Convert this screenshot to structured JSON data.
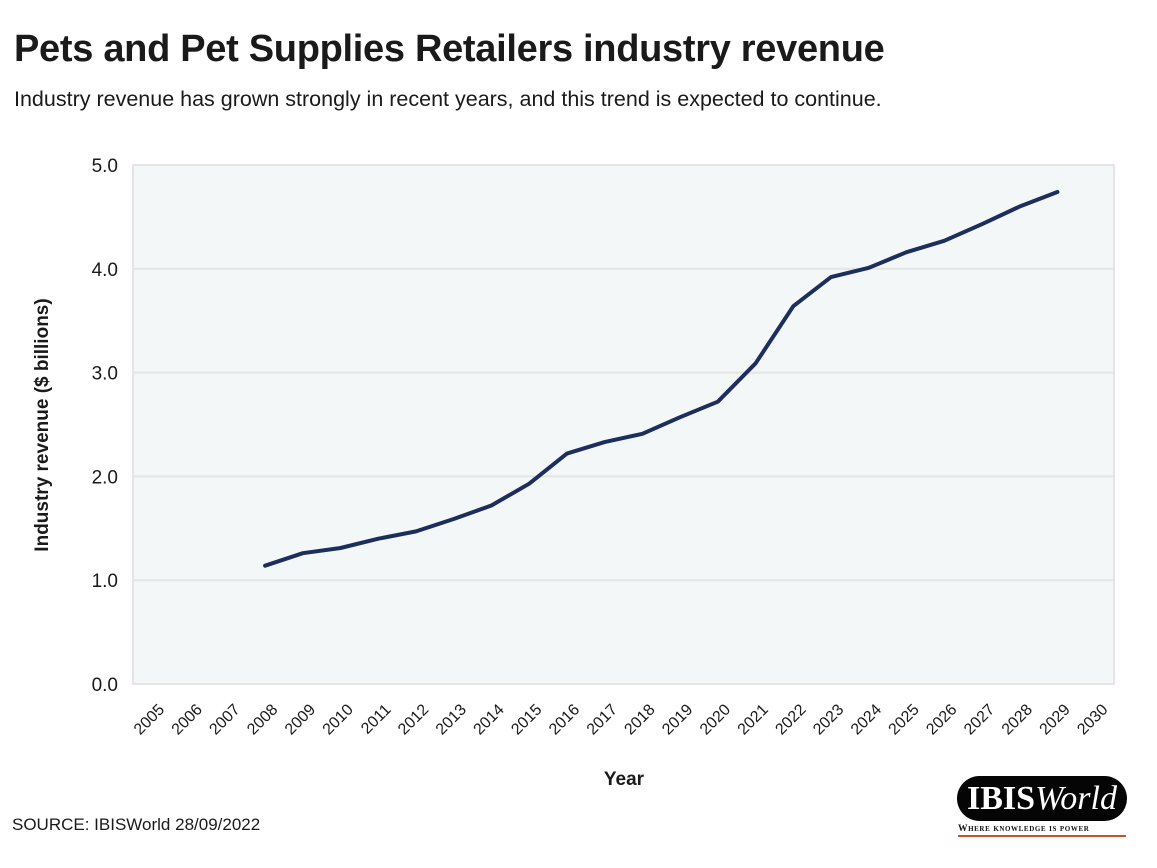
{
  "header": {
    "title": "Pets and Pet Supplies Retailers industry revenue",
    "subtitle": "Industry revenue has grown strongly in recent years, and this trend is expected to continue."
  },
  "footer": {
    "source": "SOURCE: IBISWorld 28/09/2022",
    "logo_bold": "IBIS",
    "logo_italic": "World",
    "tagline": "Where knowledge is power"
  },
  "colors": {
    "line": "#1c2f5c",
    "plot_background": "#f4f7f7",
    "gridline": "#e4e6e6",
    "text": "#1a1a1a",
    "logo_background": "#050505",
    "tagline_underline": "#c8502a"
  },
  "chart_data": {
    "type": "line",
    "title": "Pets and Pet Supplies Retailers industry revenue",
    "subtitle": "Industry revenue has grown strongly in recent years, and this trend is expected to continue.",
    "xlabel": "Year",
    "ylabel": "Industry revenue ($ billions)",
    "categories": [
      "2005",
      "2006",
      "2007",
      "2008",
      "2009",
      "2010",
      "2011",
      "2012",
      "2013",
      "2014",
      "2015",
      "2016",
      "2017",
      "2018",
      "2019",
      "2020",
      "2021",
      "2022",
      "2023",
      "2024",
      "2025",
      "2026",
      "2027",
      "2028",
      "2029",
      "2030"
    ],
    "ylim": [
      0,
      5
    ],
    "yticks": [
      0,
      1,
      2,
      3,
      4,
      5
    ],
    "ytick_labels": [
      "0.0",
      "1.0",
      "2.0",
      "3.0",
      "4.0",
      "5.0"
    ],
    "grid": "horizontal",
    "legend": "none",
    "series": [
      {
        "name": "Industry revenue",
        "x": [
          "2008",
          "2009",
          "2010",
          "2011",
          "2012",
          "2013",
          "2014",
          "2015",
          "2016",
          "2017",
          "2018",
          "2019",
          "2020",
          "2021",
          "2022",
          "2023",
          "2024",
          "2025",
          "2026",
          "2027",
          "2028",
          "2029"
        ],
        "values": [
          1.14,
          1.26,
          1.31,
          1.4,
          1.47,
          1.59,
          1.72,
          1.93,
          2.22,
          2.33,
          2.41,
          2.57,
          2.72,
          3.09,
          3.64,
          3.92,
          4.01,
          4.16,
          4.27,
          4.43,
          4.6,
          4.74
        ]
      }
    ]
  }
}
